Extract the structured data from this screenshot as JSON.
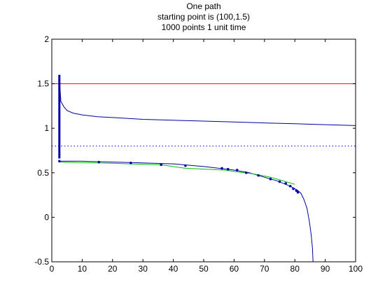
{
  "chart_data": {
    "type": "line",
    "title": [
      "One path",
      "starting point is (100,1.5)",
      "1000 points 1 unit time"
    ],
    "xlabel": "",
    "ylabel": "",
    "xlim": [
      0,
      100
    ],
    "ylim": [
      -0.5,
      2
    ],
    "xticks": [
      "0",
      "10",
      "20",
      "30",
      "40",
      "50",
      "60",
      "70",
      "80",
      "90",
      "100"
    ],
    "yticks": [
      "-0.5",
      "0",
      "0.5",
      "1",
      "1.5",
      "2"
    ],
    "grid": false,
    "legend": "none",
    "colors": {
      "red": "#ff0000",
      "blue": "#0000a0",
      "dotted": "#0000ff",
      "green": "#00c000",
      "axis": "#000000"
    },
    "series": [
      {
        "style": "solid",
        "color": "#ff0000",
        "x": [
          0,
          100
        ],
        "y": [
          1.5,
          1.5
        ]
      },
      {
        "style": "dotted",
        "color": "#0000ff",
        "x": [
          0,
          100
        ],
        "y": [
          0.8,
          0.8
        ]
      },
      {
        "style": "solid",
        "color": "#0000a0",
        "x": [
          2.6,
          3,
          4,
          5,
          7,
          10,
          15,
          20,
          30,
          40,
          50,
          60,
          70,
          80,
          90,
          100
        ],
        "y": [
          1.5,
          1.3,
          1.24,
          1.2,
          1.17,
          1.15,
          1.13,
          1.12,
          1.1,
          1.09,
          1.08,
          1.07,
          1.06,
          1.05,
          1.04,
          1.03
        ]
      },
      {
        "style": "solid",
        "color": "#0000a0",
        "x": [
          2.5,
          10,
          20,
          30,
          40,
          50,
          55,
          60,
          65,
          70,
          74,
          77,
          79,
          81,
          82,
          83,
          84,
          84.8,
          85.4,
          85.8,
          86
        ],
        "y": [
          0.63,
          0.63,
          0.62,
          0.61,
          0.6,
          0.57,
          0.55,
          0.53,
          0.5,
          0.45,
          0.41,
          0.37,
          0.34,
          0.3,
          0.27,
          0.2,
          0.1,
          -0.05,
          -0.2,
          -0.35,
          -0.5
        ]
      },
      {
        "style": "solid",
        "color": "#00c000",
        "x": [
          2.5,
          15,
          26,
          36,
          44,
          57,
          61,
          66,
          72,
          77,
          80
        ],
        "y": [
          0.62,
          0.61,
          0.6,
          0.59,
          0.55,
          0.53,
          0.51,
          0.49,
          0.45,
          0.4,
          0.37
        ]
      },
      {
        "style": "markers",
        "color": "#0000a0",
        "x": [
          2.5,
          15.5,
          26,
          36,
          44,
          56,
          58,
          61,
          64,
          68,
          72,
          75,
          77,
          78.5,
          79.5,
          80.5,
          81
        ],
        "y": [
          0.63,
          0.62,
          0.61,
          0.59,
          0.58,
          0.55,
          0.54,
          0.53,
          0.5,
          0.47,
          0.43,
          0.4,
          0.38,
          0.35,
          0.32,
          0.3,
          0.28
        ]
      },
      {
        "style": "spike",
        "color": "#0000a0",
        "x": [
          2.5,
          2.5
        ],
        "y": [
          0.66,
          1.6
        ]
      }
    ]
  }
}
